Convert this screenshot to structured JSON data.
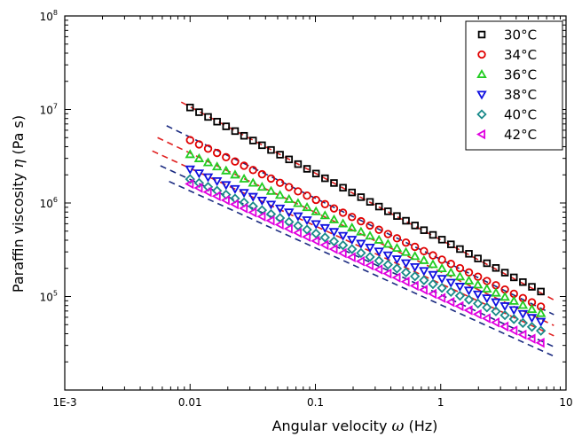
{
  "chart_data": {
    "type": "scatter",
    "title": "",
    "xlabel": {
      "prefix": "Angular velocity ",
      "symbol": "ω",
      "suffix": " (Hz)"
    },
    "ylabel": {
      "prefix": "Paraffin viscosity ",
      "symbol": "η",
      "suffix": " (Pa s)"
    },
    "x_scale": "log",
    "y_scale": "log",
    "xlim": [
      0.001,
      10
    ],
    "ylim": [
      10000,
      100000000
    ],
    "grid": false,
    "legend_position": "top-right",
    "x_ticks": [
      {
        "value": 0.001,
        "label": "1E-3"
      },
      {
        "value": 0.01,
        "label": "0.01"
      },
      {
        "value": 0.1,
        "label": "0.1"
      },
      {
        "value": 1,
        "label": "1"
      },
      {
        "value": 10,
        "label": "10"
      }
    ],
    "y_ticks": [
      {
        "value": 100000,
        "base": "10",
        "exp": "5"
      },
      {
        "value": 1000000,
        "base": "10",
        "exp": "6"
      },
      {
        "value": 10000000,
        "base": "10",
        "exp": "7"
      },
      {
        "value": 100000000,
        "base": "10",
        "exp": "8"
      }
    ],
    "x_range": [
      0.01,
      6.3
    ],
    "n_points": 40,
    "series": [
      {
        "name": "30°C",
        "marker": "square",
        "color": "#000000",
        "fit_color": "#e02020",
        "y_at_x0": 10500000,
        "y_at_x1": 113000,
        "fit_x": [
          0.0085,
          8.0
        ],
        "fit_y": [
          12000000,
          92000
        ]
      },
      {
        "name": "34°C",
        "marker": "circle",
        "color": "#e00000",
        "fit_color": "#1a2a80",
        "y_at_x0": 4700000,
        "y_at_x1": 78000,
        "fit_x": [
          0.0065,
          8.0
        ],
        "fit_y": [
          6700000,
          64000
        ]
      },
      {
        "name": "36°C",
        "marker": "triangle-up",
        "color": "#22cc22",
        "fit_color": "#e02020",
        "y_at_x0": 3300000,
        "y_at_x1": 66000,
        "fit_x": [
          0.0055,
          8.0
        ],
        "fit_y": [
          5000000,
          49000
        ]
      },
      {
        "name": "38°C",
        "marker": "triangle-down",
        "color": "#1010e0",
        "fit_color": "#e02020",
        "y_at_x0": 2300000,
        "y_at_x1": 54000,
        "fit_x": [
          0.005,
          8.0
        ],
        "fit_y": [
          3600000,
          38000
        ]
      },
      {
        "name": "40°C",
        "marker": "diamond",
        "color": "#1a8a8a",
        "fit_color": "#1a2a80",
        "y_at_x0": 1800000,
        "y_at_x1": 43000,
        "fit_x": [
          0.0058,
          8.0
        ],
        "fit_y": [
          2500000,
          29000
        ]
      },
      {
        "name": "42°C",
        "marker": "triangle-left",
        "color": "#e000e0",
        "fit_color": "#1a2a80",
        "y_at_x0": 1600000,
        "y_at_x1": 32000,
        "fit_x": [
          0.0068,
          8.0
        ],
        "fit_y": [
          1700000,
          23000
        ]
      }
    ]
  }
}
